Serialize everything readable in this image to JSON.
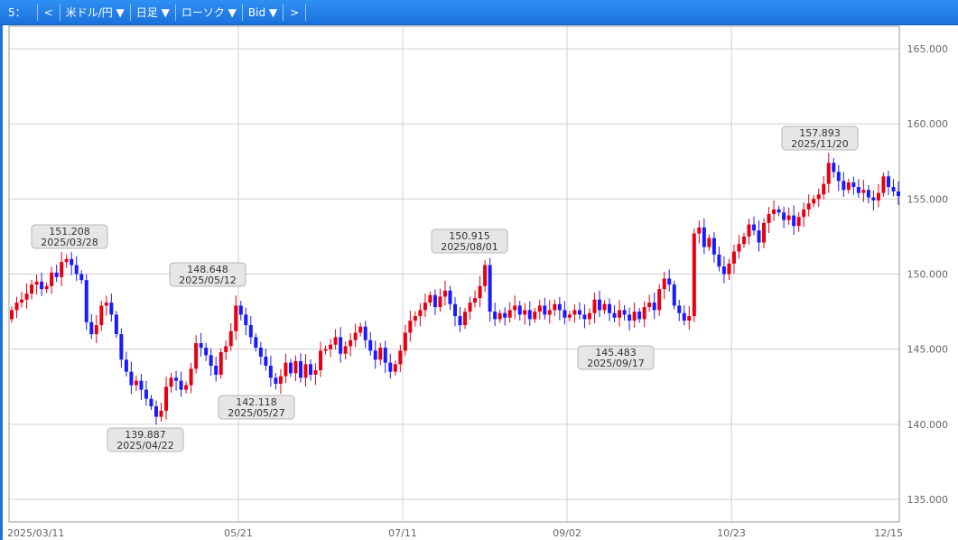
{
  "toolbar": {
    "period": "5：",
    "prev": "<",
    "pair": "米ドル/円 ▼",
    "timeframe": "日足 ▼",
    "chart_style": "ローソク ▼",
    "price_type": "Bid ▼",
    "next": ">"
  },
  "colors": {
    "up": "#e60012",
    "down": "#1a1aff",
    "grid": "#d0d0d0",
    "toolbar": "#1a72dc",
    "callout_bg": "#e6e6e6"
  },
  "chart_data": {
    "type": "candlestick",
    "pair": "USD/JPY",
    "timeframe": "daily",
    "ylim": [
      133.5,
      166.5
    ],
    "y_ticks": [
      "135.000",
      "140.000",
      "145.000",
      "150.000",
      "155.000",
      "160.000",
      "165.000"
    ],
    "x_ticks": [
      "2025/03/11",
      "05/21",
      "07/11",
      "09/02",
      "10/23",
      "12/15"
    ],
    "grid": true,
    "annotations": [
      {
        "value": "151.208",
        "date": "2025/03/28",
        "price": 151.208
      },
      {
        "value": "139.887",
        "date": "2025/04/22",
        "price": 139.887
      },
      {
        "value": "148.648",
        "date": "2025/05/12",
        "price": 148.648
      },
      {
        "value": "142.118",
        "date": "2025/05/27",
        "price": 142.118
      },
      {
        "value": "150.915",
        "date": "2025/08/01",
        "price": 150.915
      },
      {
        "value": "145.483",
        "date": "2025/09/17",
        "price": 145.483
      },
      {
        "value": "157.893",
        "date": "2025/11/20",
        "price": 157.893
      }
    ],
    "closes": [
      147.6,
      148.1,
      148.3,
      148.7,
      149.3,
      149.5,
      149.0,
      149.2,
      150.1,
      149.8,
      150.8,
      151.0,
      150.6,
      150.0,
      149.6,
      146.8,
      146.0,
      146.6,
      147.9,
      148.1,
      147.3,
      146.0,
      144.3,
      143.5,
      142.6,
      142.9,
      142.3,
      141.7,
      141.2,
      140.5,
      140.9,
      142.5,
      143.1,
      142.9,
      142.3,
      142.6,
      143.7,
      145.4,
      145.1,
      144.6,
      143.9,
      143.3,
      144.8,
      145.2,
      146.2,
      147.9,
      147.3,
      146.6,
      145.8,
      145.1,
      144.5,
      143.9,
      143.1,
      142.7,
      143.2,
      144.1,
      143.4,
      144.2,
      143.1,
      144.0,
      143.3,
      143.6,
      144.9,
      145.0,
      145.3,
      145.8,
      144.7,
      145.2,
      145.6,
      146.1,
      146.5,
      145.6,
      144.9,
      144.3,
      145.1,
      144.1,
      143.5,
      144.0,
      144.9,
      146.1,
      146.9,
      147.2,
      147.6,
      148.1,
      148.6,
      147.8,
      148.5,
      148.9,
      148.0,
      147.2,
      146.6,
      147.5,
      148.1,
      148.4,
      149.2,
      150.6,
      147.5,
      147.0,
      147.4,
      147.1,
      147.6,
      147.9,
      147.3,
      147.6,
      147.0,
      147.5,
      147.9,
      147.3,
      147.6,
      148.0,
      147.6,
      147.1,
      147.3,
      147.6,
      147.3,
      147.0,
      147.4,
      148.3,
      147.6,
      148.0,
      147.4,
      147.1,
      147.6,
      147.3,
      146.9,
      147.5,
      147.0,
      147.8,
      148.1,
      147.6,
      149.0,
      149.7,
      149.3,
      147.9,
      147.4,
      146.9,
      147.2,
      152.7,
      153.1,
      151.8,
      152.4,
      151.3,
      150.5,
      150.0,
      150.7,
      151.5,
      152.0,
      152.5,
      153.3,
      152.9,
      152.1,
      153.4,
      154.0,
      154.3,
      154.1,
      153.6,
      153.9,
      153.2,
      153.8,
      154.3,
      154.7,
      155.0,
      155.3,
      156.0,
      157.4,
      156.8,
      156.2,
      155.6,
      156.1,
      155.8,
      155.4,
      155.6,
      155.1,
      154.9,
      155.4,
      156.5,
      155.8,
      155.5,
      155.2
    ]
  }
}
